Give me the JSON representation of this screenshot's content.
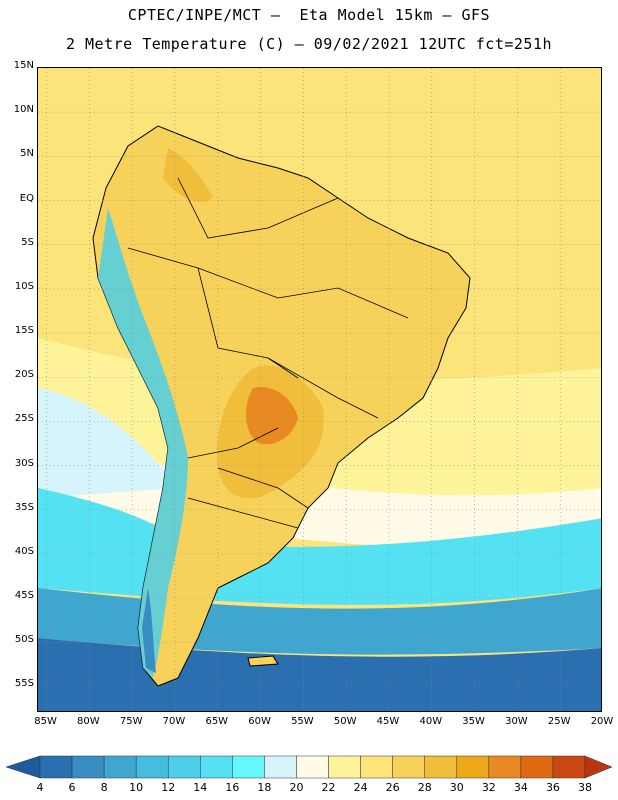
{
  "header": {
    "title_line1": "CPTEC/INPE/MCT –  Eta Model 15km – GFS",
    "title_line2": "2 Metre Temperature (C) – 09/02/2021 12UTC fct=251h"
  },
  "axes": {
    "lat_labels": [
      "15N",
      "10N",
      "5N",
      "EQ",
      "5S",
      "10S",
      "15S",
      "20S",
      "25S",
      "30S",
      "35S",
      "40S",
      "45S",
      "50S",
      "55S"
    ],
    "lon_labels": [
      "85W",
      "80W",
      "75W",
      "70W",
      "65W",
      "60W",
      "55W",
      "50W",
      "45W",
      "40W",
      "35W",
      "30W",
      "25W",
      "20W"
    ]
  },
  "colorbar": {
    "labels": [
      "4",
      "6",
      "8",
      "10",
      "12",
      "14",
      "16",
      "18",
      "20",
      "22",
      "24",
      "26",
      "28",
      "30",
      "32",
      "34",
      "36",
      "38"
    ],
    "colors": [
      "#1e5a9e",
      "#2a6fb0",
      "#3a8dc2",
      "#3fa6cf",
      "#45bde0",
      "#4ccfe8",
      "#54e2f2",
      "#66f7fb",
      "#d6f4fb",
      "#fffbe6",
      "#fff49a",
      "#fde47a",
      "#f7d25b",
      "#f1be3c",
      "#eea817",
      "#e98921",
      "#df6a13",
      "#c94712",
      "#b8350d"
    ]
  },
  "map": {
    "region": "South America",
    "colors": {
      "ocean_warm": "#fde47a",
      "ocean_mid": "#fff49a",
      "ocean_cool": "#fffbe6",
      "ocean_cold": "#54e2f2",
      "ocean_colder": "#3fa6cf",
      "ocean_coldest": "#2a6fb0",
      "land_warm": "#f7d25b",
      "land_hot": "#f1be3c",
      "land_hotter": "#e98921",
      "andes_cold": "#4ccfe8",
      "andes_colder": "#3a8dc2",
      "border": "#000000"
    }
  }
}
